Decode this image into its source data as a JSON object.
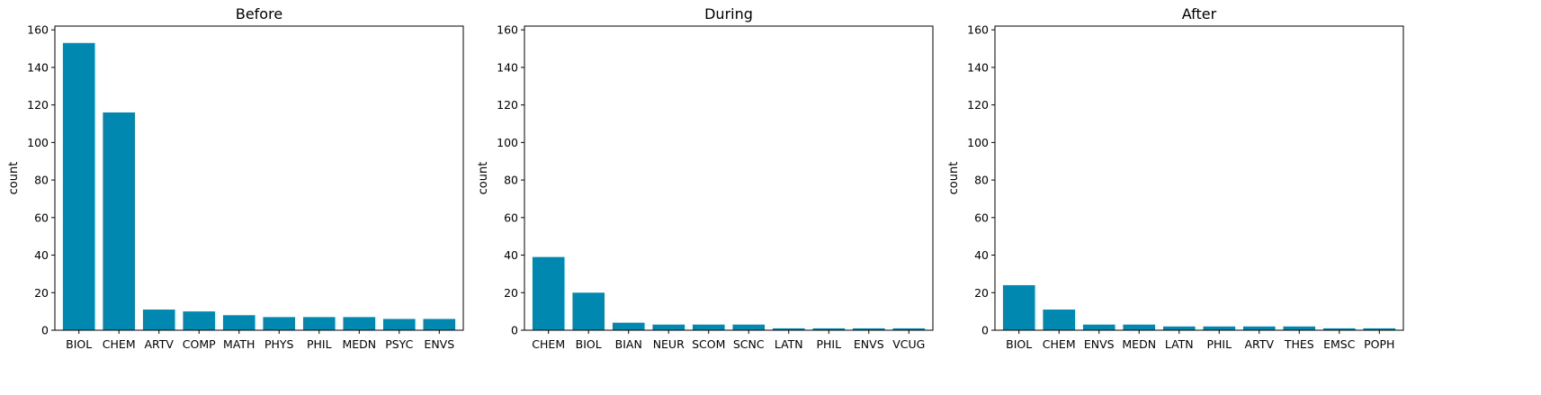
{
  "figure": {
    "bar_color": "#0088b0",
    "axis_color": "#000000",
    "background": "#ffffff"
  },
  "chart_data": [
    {
      "type": "bar",
      "title": "Before",
      "xlabel": "",
      "ylabel": "count",
      "ylim": [
        0,
        162
      ],
      "yticks": [
        0,
        20,
        40,
        60,
        80,
        100,
        120,
        140,
        160
      ],
      "categories": [
        "BIOL",
        "CHEM",
        "ARTV",
        "COMP",
        "MATH",
        "PHYS",
        "PHIL",
        "MEDN",
        "PSYC",
        "ENVS"
      ],
      "values": [
        153,
        116,
        11,
        10,
        8,
        7,
        7,
        7,
        6,
        6
      ],
      "grid": false
    },
    {
      "type": "bar",
      "title": "During",
      "xlabel": "",
      "ylabel": "count",
      "ylim": [
        0,
        162
      ],
      "yticks": [
        0,
        20,
        40,
        60,
        80,
        100,
        120,
        140,
        160
      ],
      "categories": [
        "CHEM",
        "BIOL",
        "BIAN",
        "NEUR",
        "SCOM",
        "SCNC",
        "LATN",
        "PHIL",
        "ENVS",
        "VCUG"
      ],
      "values": [
        39,
        20,
        4,
        3,
        3,
        3,
        1,
        1,
        1,
        1
      ],
      "grid": false
    },
    {
      "type": "bar",
      "title": "After",
      "xlabel": "",
      "ylabel": "count",
      "ylim": [
        0,
        162
      ],
      "yticks": [
        0,
        20,
        40,
        60,
        80,
        100,
        120,
        140,
        160
      ],
      "categories": [
        "BIOL",
        "CHEM",
        "ENVS",
        "MEDN",
        "LATN",
        "PHIL",
        "ARTV",
        "THES",
        "EMSC",
        "POPH"
      ],
      "values": [
        24,
        11,
        3,
        3,
        2,
        2,
        2,
        2,
        1,
        1
      ],
      "grid": false
    }
  ]
}
